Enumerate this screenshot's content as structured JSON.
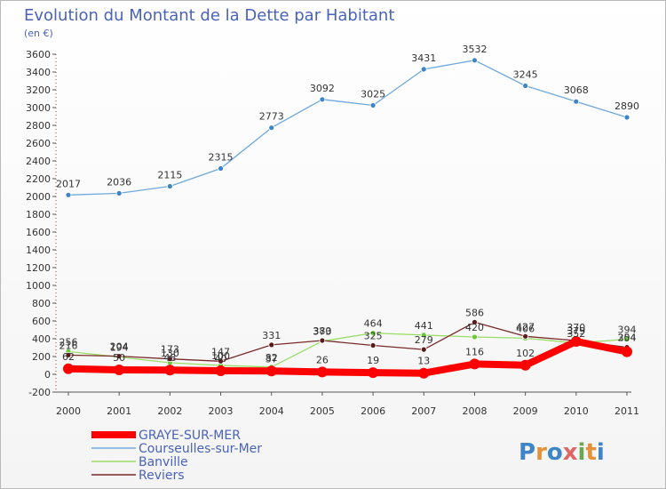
{
  "chart_data": {
    "type": "line",
    "title": "Evolution du Montant de la Dette par Habitant",
    "subtitle": "(en €)",
    "x": [
      "2000",
      "2001",
      "2002",
      "2003",
      "2004",
      "2005",
      "2006",
      "2007",
      "2008",
      "2009",
      "2010",
      "2011"
    ],
    "ylim": [
      -200,
      3600
    ],
    "yticks": [
      -200,
      0,
      200,
      400,
      600,
      800,
      1000,
      1200,
      1400,
      1600,
      1800,
      2000,
      2200,
      2400,
      2600,
      2800,
      3000,
      3200,
      3400,
      3600
    ],
    "grid": false,
    "legend_position": "bottom-left",
    "series": [
      {
        "name": "GRAYE-SUR-MER",
        "color": "#ff0000",
        "values": [
          62,
          50,
          48,
          40,
          37,
          26,
          19,
          13,
          116,
          102,
          370,
          254
        ]
      },
      {
        "name": "Courseulles-sur-Mer",
        "color": "#6fa8dc",
        "values": [
          2017,
          2036,
          2115,
          2315,
          2773,
          3092,
          3025,
          3431,
          3532,
          3245,
          3068,
          2890
        ]
      },
      {
        "name": "Banville",
        "color": "#99dd66",
        "values": [
          256,
          194,
          130,
          100,
          82,
          373,
          464,
          441,
          420,
          406,
          352,
          394
        ]
      },
      {
        "name": "Reviers",
        "color": "#7a2a2a",
        "values": [
          216,
          204,
          173,
          147,
          331,
          380,
          325,
          279,
          586,
          427,
          379,
          304
        ]
      }
    ]
  },
  "logo": {
    "text": "Proxiti"
  }
}
